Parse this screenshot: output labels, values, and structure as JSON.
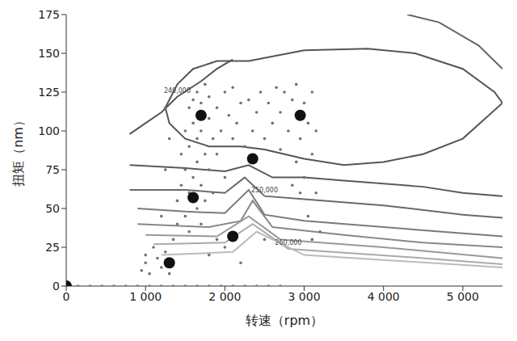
{
  "chart_data": {
    "type": "scatter",
    "x_label": "转速（rpm）",
    "y_label": "扭矩（nm）",
    "xlim": [
      0,
      5500
    ],
    "xticks": [
      0,
      {
        "value": 1000,
        "label": "1 000"
      },
      {
        "value": 2000,
        "label": "2 000"
      },
      {
        "value": 3000,
        "label": "3 000"
      },
      {
        "value": 4000,
        "label": "4 000"
      },
      {
        "value": 5000,
        "label": "5 000"
      }
    ],
    "ylim": [
      0,
      175
    ],
    "yticks": [
      0,
      25,
      50,
      75,
      100,
      125,
      150,
      175
    ],
    "grid": false,
    "series": [
      {
        "type": "line",
        "color": "#555555",
        "label": "240,000",
        "points": [
          [
            800,
            98
          ],
          [
            1000,
            105
          ],
          [
            1200,
            112
          ],
          [
            1400,
            122
          ],
          [
            1700,
            132
          ],
          [
            1900,
            140
          ],
          [
            2100,
            146
          ]
        ]
      },
      {
        "type": "line",
        "color": "#555555",
        "points": [
          [
            2300,
            145
          ],
          [
            3000,
            152
          ],
          [
            3800,
            153
          ],
          [
            4400,
            150
          ],
          [
            5000,
            140
          ],
          [
            5400,
            125
          ],
          [
            5500,
            118
          ],
          [
            5000,
            95
          ],
          [
            4500,
            85
          ],
          [
            4000,
            80
          ],
          [
            3500,
            78
          ],
          [
            3000,
            82
          ],
          [
            2500,
            88
          ],
          [
            2200,
            90
          ],
          [
            1800,
            90
          ],
          [
            1500,
            95
          ],
          [
            1300,
            105
          ],
          [
            1250,
            115
          ],
          [
            1400,
            130
          ],
          [
            1600,
            140
          ],
          [
            1900,
            145
          ],
          [
            2300,
            145
          ]
        ]
      },
      {
        "type": "line",
        "color": "#666666",
        "points": [
          [
            4300,
            175
          ],
          [
            4700,
            170
          ],
          [
            5200,
            155
          ],
          [
            5500,
            140
          ]
        ]
      },
      {
        "type": "line",
        "color": "#5a5a5a",
        "points": [
          [
            800,
            78
          ],
          [
            1500,
            76
          ],
          [
            2000,
            74
          ],
          [
            2300,
            78
          ],
          [
            2600,
            70
          ],
          [
            3000,
            70
          ],
          [
            3500,
            68
          ],
          [
            4000,
            66
          ],
          [
            4500,
            64
          ],
          [
            5000,
            60
          ],
          [
            5500,
            58
          ]
        ]
      },
      {
        "type": "line",
        "color": "#6a6a6a",
        "label": "250,000",
        "points": [
          [
            800,
            62
          ],
          [
            1500,
            62
          ],
          [
            2000,
            60
          ],
          [
            2250,
            70
          ],
          [
            2500,
            58
          ],
          [
            3000,
            56
          ],
          [
            4000,
            52
          ],
          [
            5000,
            46
          ],
          [
            5500,
            44
          ]
        ]
      },
      {
        "type": "line",
        "color": "#7a7a7a",
        "points": [
          [
            900,
            50
          ],
          [
            1500,
            48
          ],
          [
            2000,
            47
          ],
          [
            2300,
            62
          ],
          [
            2500,
            46
          ],
          [
            3000,
            42
          ],
          [
            4000,
            38
          ],
          [
            5000,
            34
          ],
          [
            5500,
            32
          ]
        ]
      },
      {
        "type": "line",
        "color": "#888888",
        "points": [
          [
            900,
            40
          ],
          [
            1800,
            38
          ],
          [
            2200,
            42
          ],
          [
            2350,
            55
          ],
          [
            2600,
            38
          ],
          [
            3500,
            33
          ],
          [
            4500,
            28
          ],
          [
            5500,
            25
          ]
        ]
      },
      {
        "type": "line",
        "color": "#999999",
        "points": [
          [
            1000,
            33
          ],
          [
            1900,
            32
          ],
          [
            2300,
            45
          ],
          [
            2700,
            30
          ],
          [
            4000,
            25
          ],
          [
            5500,
            18
          ]
        ]
      },
      {
        "type": "line",
        "color": "#aaaaaa",
        "label": "260,000",
        "points": [
          [
            1100,
            27
          ],
          [
            2000,
            28
          ],
          [
            2350,
            40
          ],
          [
            2800,
            24
          ],
          [
            4500,
            18
          ],
          [
            5500,
            14
          ]
        ]
      },
      {
        "type": "line",
        "color": "#bbbbbb",
        "points": [
          [
            1200,
            20
          ],
          [
            2100,
            22
          ],
          [
            2400,
            35
          ],
          [
            3000,
            20
          ],
          [
            5500,
            12
          ]
        ]
      },
      {
        "type": "scatter",
        "color": "#707070",
        "marker": "small",
        "points": [
          [
            0,
            0
          ],
          [
            150,
            0
          ],
          [
            300,
            0
          ],
          [
            450,
            0
          ],
          [
            600,
            0
          ],
          [
            750,
            0
          ],
          [
            900,
            0
          ],
          [
            1050,
            0
          ],
          [
            1200,
            0
          ],
          [
            1350,
            0
          ],
          [
            1500,
            0
          ],
          [
            1650,
            0
          ],
          [
            1800,
            0
          ],
          [
            1950,
            0
          ],
          [
            2100,
            0
          ],
          [
            2250,
            0
          ],
          [
            2400,
            0
          ],
          [
            2550,
            0
          ],
          [
            2700,
            0
          ],
          [
            950,
            10
          ],
          [
            1000,
            15
          ],
          [
            1000,
            20
          ],
          [
            1050,
            8
          ],
          [
            1100,
            25
          ],
          [
            1150,
            18
          ],
          [
            1200,
            12
          ],
          [
            1250,
            22
          ],
          [
            1300,
            8
          ],
          [
            1350,
            30
          ],
          [
            1400,
            40
          ],
          [
            1400,
            55
          ],
          [
            1450,
            65
          ],
          [
            1450,
            85
          ],
          [
            1500,
            45
          ],
          [
            1500,
            75
          ],
          [
            1500,
            100
          ],
          [
            1550,
            35
          ],
          [
            1550,
            60
          ],
          [
            1550,
            90
          ],
          [
            1550,
            115
          ],
          [
            1600,
            70
          ],
          [
            1600,
            105
          ],
          [
            1600,
            120
          ],
          [
            1650,
            50
          ],
          [
            1650,
            80
          ],
          [
            1650,
            95
          ],
          [
            1650,
            125
          ],
          [
            1700,
            40
          ],
          [
            1700,
            65
          ],
          [
            1700,
            100
          ],
          [
            1700,
            118
          ],
          [
            1750,
            55
          ],
          [
            1750,
            85
          ],
          [
            1750,
            130
          ],
          [
            1800,
            75
          ],
          [
            1800,
            108
          ],
          [
            1800,
            122
          ],
          [
            1850,
            95
          ],
          [
            1850,
            60
          ],
          [
            1900,
            115
          ],
          [
            1900,
            85
          ],
          [
            1950,
            100
          ],
          [
            2000,
            125
          ],
          [
            2000,
            70
          ],
          [
            2050,
            110
          ],
          [
            2100,
            95
          ],
          [
            2100,
            128
          ],
          [
            2150,
            105
          ],
          [
            2200,
            118
          ],
          [
            2250,
            90
          ],
          [
            2300,
            120
          ],
          [
            2350,
            100
          ],
          [
            2400,
            112
          ],
          [
            2450,
            125
          ],
          [
            2500,
            95
          ],
          [
            2550,
            118
          ],
          [
            2600,
            105
          ],
          [
            2650,
            128
          ],
          [
            2700,
            88
          ],
          [
            2700,
            112
          ],
          [
            2750,
            125
          ],
          [
            2800,
            100
          ],
          [
            2850,
            120
          ],
          [
            2900,
            80
          ],
          [
            2900,
            130
          ],
          [
            2950,
            95
          ],
          [
            3000,
            70
          ],
          [
            3000,
            118
          ],
          [
            3050,
            105
          ],
          [
            3100,
            85
          ],
          [
            3100,
            125
          ],
          [
            3150,
            60
          ],
          [
            3150,
            100
          ],
          [
            2850,
            65
          ],
          [
            2950,
            60
          ],
          [
            3050,
            45
          ],
          [
            3200,
            35
          ],
          [
            3100,
            30
          ],
          [
            1800,
            20
          ],
          [
            1900,
            30
          ],
          [
            2000,
            25
          ],
          [
            2200,
            15
          ],
          [
            2500,
            30
          ],
          [
            1200,
            45
          ],
          [
            1250,
            75
          ],
          [
            1300,
            95
          ],
          [
            1250,
            115
          ]
        ]
      },
      {
        "type": "scatter",
        "color": "#111111",
        "marker": "large",
        "points": [
          [
            0,
            0
          ],
          [
            1300,
            15
          ],
          [
            1600,
            57
          ],
          [
            1700,
            110
          ],
          [
            2100,
            32
          ],
          [
            2350,
            82
          ],
          [
            2950,
            110
          ]
        ]
      }
    ]
  }
}
